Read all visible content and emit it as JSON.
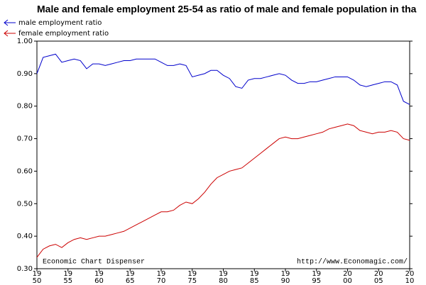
{
  "chart_data": {
    "type": "line",
    "title": "Male and female employment 25-54 as ratio of male and female population in tha",
    "x": [
      1950,
      1951,
      1952,
      1953,
      1954,
      1955,
      1956,
      1957,
      1958,
      1959,
      1960,
      1961,
      1962,
      1963,
      1964,
      1965,
      1966,
      1967,
      1968,
      1969,
      1970,
      1971,
      1972,
      1973,
      1974,
      1975,
      1976,
      1977,
      1978,
      1979,
      1980,
      1981,
      1982,
      1983,
      1984,
      1985,
      1986,
      1987,
      1988,
      1989,
      1990,
      1991,
      1992,
      1993,
      1994,
      1995,
      1996,
      1997,
      1998,
      1999,
      2000,
      2001,
      2002,
      2003,
      2004,
      2005,
      2006,
      2007,
      2008,
      2009,
      2010
    ],
    "series": [
      {
        "name": "male employment ratio",
        "color": "#0000cc",
        "values": [
          0.9,
          0.95,
          0.955,
          0.96,
          0.935,
          0.94,
          0.945,
          0.94,
          0.915,
          0.93,
          0.93,
          0.925,
          0.93,
          0.935,
          0.94,
          0.94,
          0.945,
          0.945,
          0.945,
          0.945,
          0.935,
          0.925,
          0.925,
          0.93,
          0.925,
          0.89,
          0.895,
          0.9,
          0.91,
          0.91,
          0.895,
          0.885,
          0.86,
          0.855,
          0.88,
          0.885,
          0.885,
          0.89,
          0.895,
          0.9,
          0.895,
          0.88,
          0.87,
          0.87,
          0.875,
          0.875,
          0.88,
          0.885,
          0.89,
          0.89,
          0.89,
          0.88,
          0.865,
          0.86,
          0.865,
          0.87,
          0.875,
          0.875,
          0.865,
          0.815,
          0.805
        ]
      },
      {
        "name": "female employment ratio",
        "color": "#cc0000",
        "values": [
          0.335,
          0.36,
          0.37,
          0.375,
          0.365,
          0.38,
          0.39,
          0.395,
          0.39,
          0.395,
          0.4,
          0.4,
          0.405,
          0.41,
          0.415,
          0.425,
          0.435,
          0.445,
          0.455,
          0.465,
          0.475,
          0.475,
          0.48,
          0.495,
          0.505,
          0.5,
          0.515,
          0.535,
          0.56,
          0.58,
          0.59,
          0.6,
          0.605,
          0.61,
          0.625,
          0.64,
          0.655,
          0.67,
          0.685,
          0.7,
          0.705,
          0.7,
          0.7,
          0.705,
          0.71,
          0.715,
          0.72,
          0.73,
          0.735,
          0.74,
          0.745,
          0.74,
          0.725,
          0.72,
          0.715,
          0.72,
          0.72,
          0.725,
          0.72,
          0.7,
          0.695
        ]
      }
    ],
    "xlim": [
      1950,
      2010
    ],
    "xticks": [
      {
        "value": 1950,
        "label": "19\n50"
      },
      {
        "value": 1955,
        "label": "19\n55"
      },
      {
        "value": 1960,
        "label": "19\n60"
      },
      {
        "value": 1965,
        "label": "19\n65"
      },
      {
        "value": 1970,
        "label": "19\n70"
      },
      {
        "value": 1975,
        "label": "19\n75"
      },
      {
        "value": 1980,
        "label": "19\n80"
      },
      {
        "value": 1985,
        "label": "19\n85"
      },
      {
        "value": 1990,
        "label": "19\n90"
      },
      {
        "value": 1995,
        "label": "19\n95"
      },
      {
        "value": 2000,
        "label": "20\n00"
      },
      {
        "value": 2005,
        "label": "20\n05"
      },
      {
        "value": 2010,
        "label": "20\n10"
      }
    ],
    "ylim": [
      0.3,
      1.0
    ],
    "yticks": [
      {
        "value": 0.3,
        "label": "0.30"
      },
      {
        "value": 0.4,
        "label": "0.40"
      },
      {
        "value": 0.5,
        "label": "0.50"
      },
      {
        "value": 0.6,
        "label": "0.60"
      },
      {
        "value": 0.7,
        "label": "0.70"
      },
      {
        "value": 0.8,
        "label": "0.80"
      },
      {
        "value": 0.9,
        "label": "0.90"
      },
      {
        "value": 1.0,
        "label": "1.00"
      }
    ],
    "annotations": [
      "Economic Chart Dispenser",
      "http://www.Economagic.com/"
    ]
  }
}
